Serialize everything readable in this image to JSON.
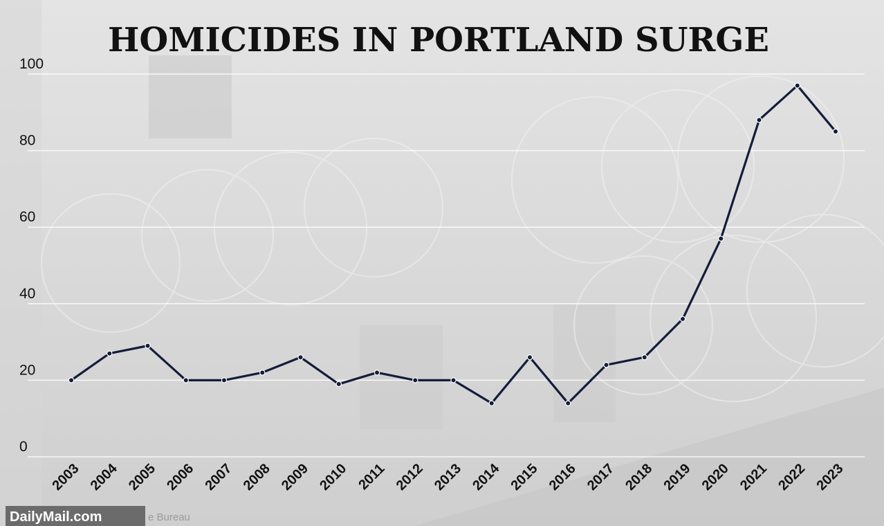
{
  "source": {
    "brand": "DailyMail.com",
    "credit": "e Bureau"
  },
  "chart_data": {
    "type": "line",
    "title": "HOMICIDES IN PORTLAND SURGE",
    "xlabel": "",
    "ylabel": "",
    "ylim": [
      0,
      100
    ],
    "yticks": [
      "0",
      "20",
      "40",
      "60",
      "80",
      "100"
    ],
    "grid": true,
    "x": [
      "2003",
      "2004",
      "2005",
      "2006",
      "2007",
      "2008",
      "2009",
      "2010",
      "2011",
      "2012",
      "2013",
      "2014",
      "2015",
      "2016",
      "2017",
      "2018",
      "2019",
      "2020",
      "2021",
      "2022",
      "2023"
    ],
    "series": [
      {
        "values": [
          20,
          27,
          29,
          20,
          20,
          22,
          26,
          19,
          22,
          20,
          20,
          14,
          26,
          14,
          24,
          26,
          36,
          57,
          88,
          97,
          85
        ]
      }
    ],
    "colors": {
      "line": "#141c3a"
    }
  }
}
